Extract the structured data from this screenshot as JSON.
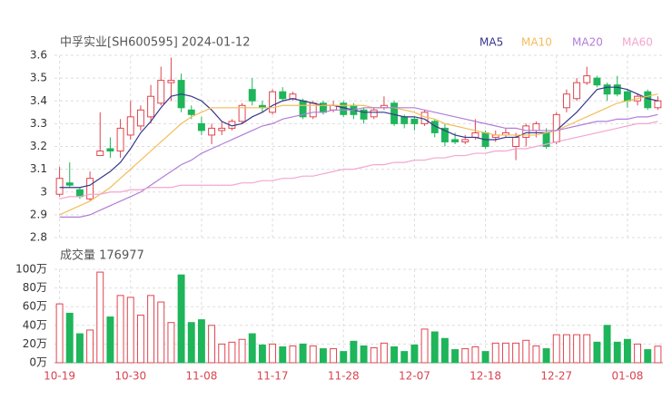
{
  "chart_data": [
    {
      "type": "candlestick",
      "title": "中孚实业[SH600595] 2024-01-12",
      "up_color": "#e0454f",
      "down_color": "#1fb55a",
      "open": [
        2.99,
        3.04,
        3.01,
        2.97,
        3.16,
        3.19,
        3.18,
        3.25,
        3.29,
        3.33,
        3.39,
        3.48,
        3.49,
        3.36,
        3.3,
        3.25,
        3.27,
        3.28,
        3.31,
        3.45,
        3.38,
        3.35,
        3.44,
        3.41,
        3.4,
        3.33,
        3.39,
        3.36,
        3.39,
        3.38,
        3.36,
        3.33,
        3.37,
        3.39,
        3.33,
        3.32,
        3.3,
        3.31,
        3.28,
        3.23,
        3.22,
        3.24,
        3.26,
        3.24,
        3.25,
        3.2,
        3.24,
        3.27,
        3.26,
        3.22,
        3.37,
        3.41,
        3.48,
        3.5,
        3.47,
        3.47,
        3.44,
        3.4,
        3.44,
        3.37
      ],
      "high": [
        3.11,
        3.13,
        3.02,
        3.09,
        3.35,
        3.24,
        3.32,
        3.4,
        3.38,
        3.47,
        3.55,
        3.59,
        3.52,
        3.38,
        3.33,
        3.3,
        3.31,
        3.32,
        3.39,
        3.5,
        3.4,
        3.45,
        3.46,
        3.44,
        3.41,
        3.4,
        3.4,
        3.4,
        3.4,
        3.39,
        3.37,
        3.37,
        3.42,
        3.4,
        3.34,
        3.33,
        3.36,
        3.32,
        3.3,
        3.26,
        3.25,
        3.32,
        3.27,
        3.27,
        3.28,
        3.26,
        3.3,
        3.31,
        3.28,
        3.35,
        3.45,
        3.5,
        3.55,
        3.51,
        3.48,
        3.51,
        3.45,
        3.43,
        3.45,
        3.42
      ],
      "low": [
        2.98,
        3.02,
        2.97,
        2.96,
        3.16,
        3.15,
        3.15,
        3.23,
        3.27,
        3.3,
        3.38,
        3.4,
        3.35,
        3.32,
        3.25,
        3.21,
        3.25,
        3.27,
        3.3,
        3.38,
        3.35,
        3.34,
        3.4,
        3.4,
        3.32,
        3.32,
        3.34,
        3.35,
        3.33,
        3.32,
        3.3,
        3.32,
        3.36,
        3.29,
        3.28,
        3.27,
        3.29,
        3.24,
        3.2,
        3.21,
        3.21,
        3.23,
        3.19,
        3.22,
        3.24,
        3.14,
        3.2,
        3.24,
        3.19,
        3.21,
        3.35,
        3.4,
        3.47,
        3.46,
        3.4,
        3.42,
        3.37,
        3.38,
        3.36,
        3.36
      ],
      "close": [
        3.06,
        3.03,
        2.98,
        3.06,
        3.18,
        3.18,
        3.28,
        3.33,
        3.36,
        3.42,
        3.49,
        3.49,
        3.37,
        3.34,
        3.27,
        3.28,
        3.28,
        3.31,
        3.38,
        3.4,
        3.37,
        3.44,
        3.41,
        3.43,
        3.33,
        3.39,
        3.35,
        3.38,
        3.34,
        3.34,
        3.32,
        3.36,
        3.38,
        3.3,
        3.3,
        3.3,
        3.35,
        3.26,
        3.22,
        3.22,
        3.23,
        3.26,
        3.2,
        3.25,
        3.26,
        3.24,
        3.29,
        3.3,
        3.2,
        3.34,
        3.43,
        3.48,
        3.51,
        3.47,
        3.43,
        3.43,
        3.4,
        3.42,
        3.37,
        3.4
      ],
      "series": [
        {
          "name": "MA5",
          "color": "#35378a",
          "values": [
            3.02,
            3.02,
            3.02,
            3.03,
            3.06,
            3.09,
            3.13,
            3.19,
            3.26,
            3.31,
            3.37,
            3.42,
            3.43,
            3.42,
            3.4,
            3.36,
            3.31,
            3.29,
            3.3,
            3.33,
            3.35,
            3.38,
            3.4,
            3.41,
            3.4,
            3.39,
            3.38,
            3.38,
            3.37,
            3.36,
            3.35,
            3.35,
            3.35,
            3.34,
            3.33,
            3.33,
            3.32,
            3.29,
            3.27,
            3.25,
            3.24,
            3.24,
            3.23,
            3.23,
            3.24,
            3.24,
            3.26,
            3.26,
            3.26,
            3.27,
            3.31,
            3.35,
            3.4,
            3.45,
            3.46,
            3.46,
            3.45,
            3.43,
            3.41,
            3.4
          ]
        },
        {
          "name": "MA10",
          "color": "#f3bd5a",
          "values": [
            2.9,
            2.92,
            2.94,
            2.96,
            2.99,
            3.02,
            3.06,
            3.1,
            3.14,
            3.18,
            3.22,
            3.26,
            3.3,
            3.33,
            3.35,
            3.37,
            3.37,
            3.37,
            3.37,
            3.37,
            3.37,
            3.37,
            3.38,
            3.38,
            3.38,
            3.38,
            3.38,
            3.38,
            3.38,
            3.38,
            3.38,
            3.37,
            3.37,
            3.37,
            3.36,
            3.35,
            3.33,
            3.32,
            3.3,
            3.29,
            3.28,
            3.27,
            3.26,
            3.25,
            3.25,
            3.25,
            3.25,
            3.25,
            3.26,
            3.27,
            3.29,
            3.31,
            3.33,
            3.35,
            3.37,
            3.39,
            3.4,
            3.41,
            3.42,
            3.43
          ]
        },
        {
          "name": "MA20",
          "color": "#b27ed8",
          "values": [
            2.89,
            2.89,
            2.89,
            2.9,
            2.92,
            2.94,
            2.96,
            2.98,
            3.0,
            3.03,
            3.06,
            3.09,
            3.12,
            3.14,
            3.17,
            3.19,
            3.21,
            3.23,
            3.25,
            3.27,
            3.29,
            3.3,
            3.32,
            3.33,
            3.34,
            3.35,
            3.35,
            3.36,
            3.36,
            3.36,
            3.37,
            3.37,
            3.37,
            3.37,
            3.37,
            3.37,
            3.36,
            3.35,
            3.34,
            3.33,
            3.32,
            3.31,
            3.3,
            3.29,
            3.28,
            3.28,
            3.27,
            3.27,
            3.27,
            3.27,
            3.28,
            3.29,
            3.3,
            3.31,
            3.31,
            3.32,
            3.32,
            3.33,
            3.33,
            3.34
          ]
        },
        {
          "name": "MA60",
          "color": "#f2a6cf",
          "values": [
            2.97,
            2.98,
            2.98,
            2.99,
            2.99,
            3.0,
            3.0,
            3.01,
            3.01,
            3.02,
            3.02,
            3.02,
            3.03,
            3.03,
            3.03,
            3.03,
            3.03,
            3.03,
            3.04,
            3.04,
            3.05,
            3.05,
            3.06,
            3.06,
            3.07,
            3.07,
            3.08,
            3.09,
            3.1,
            3.1,
            3.11,
            3.12,
            3.12,
            3.13,
            3.13,
            3.14,
            3.14,
            3.15,
            3.15,
            3.16,
            3.16,
            3.17,
            3.17,
            3.18,
            3.18,
            3.19,
            3.19,
            3.2,
            3.21,
            3.22,
            3.23,
            3.24,
            3.25,
            3.26,
            3.27,
            3.28,
            3.29,
            3.3,
            3.3,
            3.31
          ]
        }
      ],
      "ylim": [
        2.8,
        3.6
      ],
      "yticks": [
        2.8,
        2.9,
        3,
        3.1,
        3.2,
        3.3,
        3.4,
        3.5,
        3.6
      ],
      "grid": true
    },
    {
      "type": "bar",
      "title": "成交量 176977",
      "categories": [
        "10-19",
        null,
        null,
        null,
        null,
        null,
        null,
        "10-30",
        null,
        null,
        null,
        null,
        null,
        null,
        "11-08",
        null,
        null,
        null,
        null,
        null,
        null,
        "11-17",
        null,
        null,
        null,
        null,
        null,
        null,
        "11-28",
        null,
        null,
        null,
        null,
        null,
        null,
        "12-07",
        null,
        null,
        null,
        null,
        null,
        null,
        "12-18",
        null,
        null,
        null,
        null,
        null,
        null,
        "12-27",
        null,
        null,
        null,
        null,
        null,
        null,
        "01-08",
        null,
        null,
        null
      ],
      "values": [
        63,
        53,
        31,
        35,
        97,
        49,
        72,
        70,
        51,
        72,
        65,
        43,
        94,
        43,
        46,
        40,
        20,
        22,
        25,
        31,
        19,
        20,
        17,
        18,
        20,
        18,
        15,
        15,
        12,
        23,
        18,
        16,
        21,
        17,
        12,
        19,
        36,
        33,
        26,
        14,
        15,
        17,
        12,
        21,
        21,
        21,
        24,
        18,
        15,
        30,
        30,
        30,
        30,
        22,
        40,
        22,
        25,
        20,
        14,
        17.6977
      ],
      "ylim": [
        0,
        100
      ],
      "yticks": [
        {
          "value": 0,
          "label": "0万"
        },
        {
          "value": 20,
          "label": "20万"
        },
        {
          "value": 40,
          "label": "40万"
        },
        {
          "value": 60,
          "label": "60万"
        },
        {
          "value": 80,
          "label": "80万"
        },
        {
          "value": 100,
          "label": "100万"
        }
      ],
      "grid": true
    }
  ]
}
